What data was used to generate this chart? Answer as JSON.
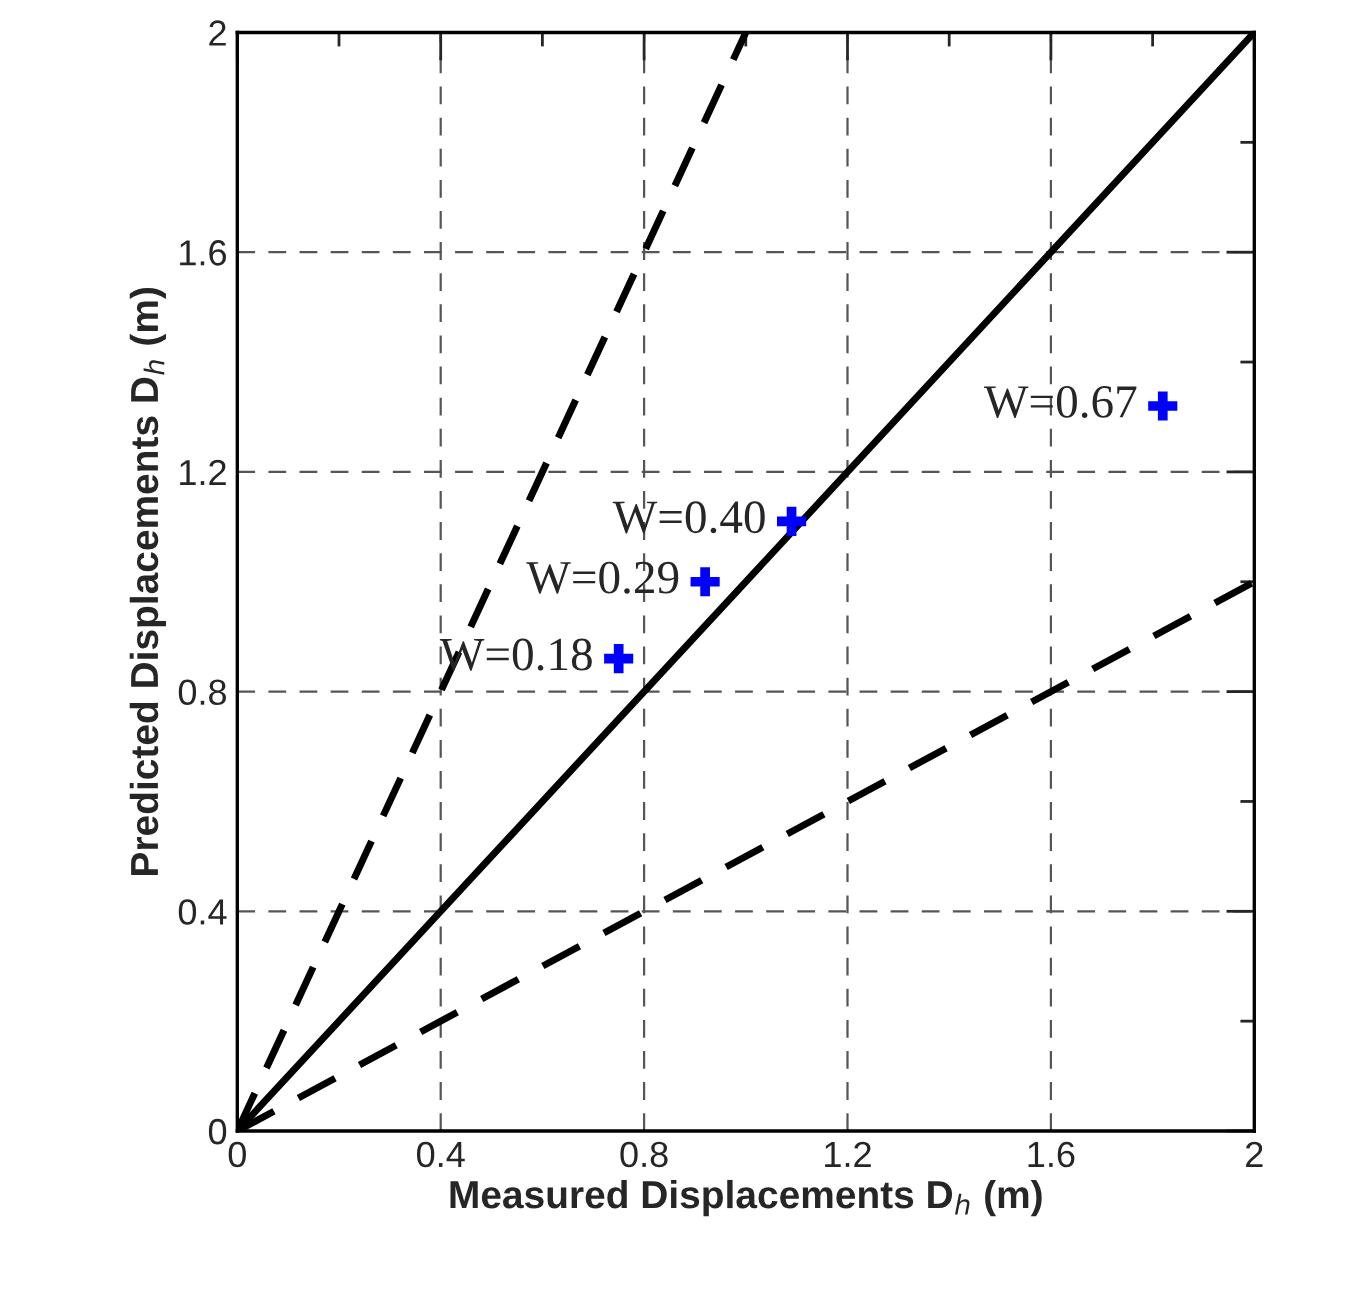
{
  "chart_data": {
    "type": "scatter",
    "xlabel": "Measured Displacements D$_{h}$ (m)",
    "ylabel": "Predicted Displacements D$_{h}$ (m)",
    "xlim": [
      0,
      2
    ],
    "ylim": [
      0,
      2
    ],
    "xticks": [
      0,
      {
        "value": 0.2,
        "label": null
      },
      0.4,
      {
        "value": 0.6,
        "label": null
      },
      0.8,
      {
        "value": 1.0,
        "label": null
      },
      1.2,
      {
        "value": 1.4,
        "label": null
      },
      1.6,
      {
        "value": 1.8,
        "label": null
      },
      2
    ],
    "yticks": [
      0,
      {
        "value": 0.2,
        "label": null
      },
      0.4,
      {
        "value": 0.6,
        "label": null
      },
      0.8,
      {
        "value": 1.0,
        "label": null
      },
      1.2,
      {
        "value": 1.4,
        "label": null
      },
      1.6,
      {
        "value": 1.8,
        "label": null
      },
      2
    ],
    "grid": true,
    "legend": false,
    "series": [
      {
        "color": "#0000ff",
        "marker": "cross",
        "x": [
          0.75,
          0.92,
          1.09,
          1.82
        ],
        "values": [
          0.86,
          1.0,
          1.11,
          1.32
        ]
      },
      {
        "type": "line",
        "color": "#000000",
        "line_style": "solid",
        "x": [
          0,
          2
        ],
        "values": [
          0,
          2
        ]
      },
      {
        "type": "line",
        "color": "#000000",
        "line_style": "dashed",
        "x": [
          0,
          1
        ],
        "values": [
          0,
          2
        ]
      },
      {
        "type": "line",
        "color": "#000000",
        "line_style": "dashed",
        "x": [
          0,
          2
        ],
        "values": [
          0,
          1
        ]
      }
    ],
    "annotations": [
      {
        "text": "W=0.18",
        "x": 0.75,
        "y": 0.86
      },
      {
        "text": "W=0.29",
        "x": 0.92,
        "y": 1.0
      },
      {
        "text": "W=0.40",
        "x": 1.09,
        "y": 1.11
      },
      {
        "text": "W=0.67",
        "x": 1.82,
        "y": 1.32
      }
    ]
  }
}
